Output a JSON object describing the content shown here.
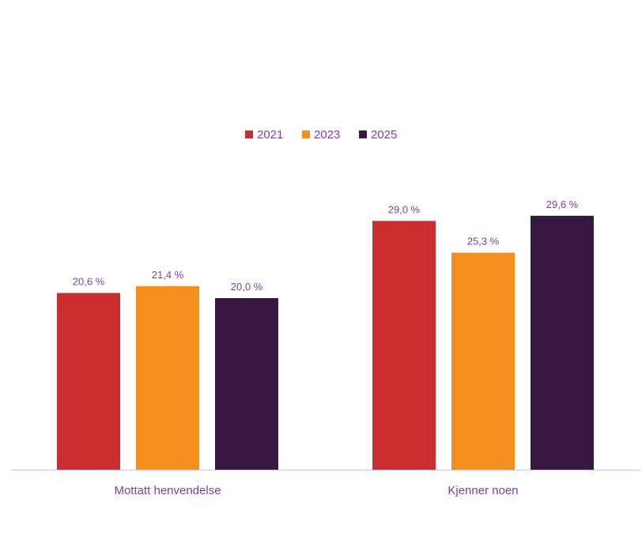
{
  "chart_data": {
    "type": "bar",
    "categories": [
      "Mottatt henvendelse",
      "Kjenner noen"
    ],
    "series": [
      {
        "name": "2021",
        "color": "#cc2f2e",
        "values": [
          20.6,
          29.0
        ],
        "labels": [
          "20,6 %",
          "29,0 %"
        ]
      },
      {
        "name": "2023",
        "color": "#f5901e",
        "values": [
          21.4,
          25.3
        ],
        "labels": [
          "21,4 %",
          "25,3 %"
        ]
      },
      {
        "name": "2025",
        "color": "#371842",
        "values": [
          20.0,
          29.6
        ],
        "labels": [
          "20,0 %",
          "29,6 %"
        ]
      }
    ],
    "legend": "top-center",
    "grid": false,
    "ylim": [
      0,
      30
    ],
    "text_color": "#7a3fa8",
    "axis_color": "#d9c6e3"
  }
}
